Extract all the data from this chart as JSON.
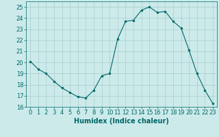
{
  "x": [
    0,
    1,
    2,
    3,
    4,
    5,
    6,
    7,
    8,
    9,
    10,
    11,
    12,
    13,
    14,
    15,
    16,
    17,
    18,
    19,
    20,
    21,
    22,
    23
  ],
  "y": [
    20.1,
    19.4,
    19.0,
    18.3,
    17.7,
    17.3,
    16.9,
    16.8,
    17.5,
    18.8,
    19.0,
    22.1,
    23.7,
    23.8,
    24.7,
    25.0,
    24.5,
    24.6,
    23.7,
    23.1,
    21.1,
    19.0,
    17.5,
    16.3
  ],
  "line_color": "#006666",
  "marker": "o",
  "marker_size": 2.0,
  "bg_color": "#cceaea",
  "grid_color": "#aacccc",
  "xlabel": "Humidex (Indice chaleur)",
  "ylim": [
    16,
    25.5
  ],
  "xlim": [
    -0.5,
    23.5
  ],
  "yticks": [
    16,
    17,
    18,
    19,
    20,
    21,
    22,
    23,
    24,
    25
  ],
  "xticks": [
    0,
    1,
    2,
    3,
    4,
    5,
    6,
    7,
    8,
    9,
    10,
    11,
    12,
    13,
    14,
    15,
    16,
    17,
    18,
    19,
    20,
    21,
    22,
    23
  ],
  "tick_color": "#006666",
  "label_color": "#006666",
  "xlabel_fontsize": 7,
  "tick_fontsize": 6
}
